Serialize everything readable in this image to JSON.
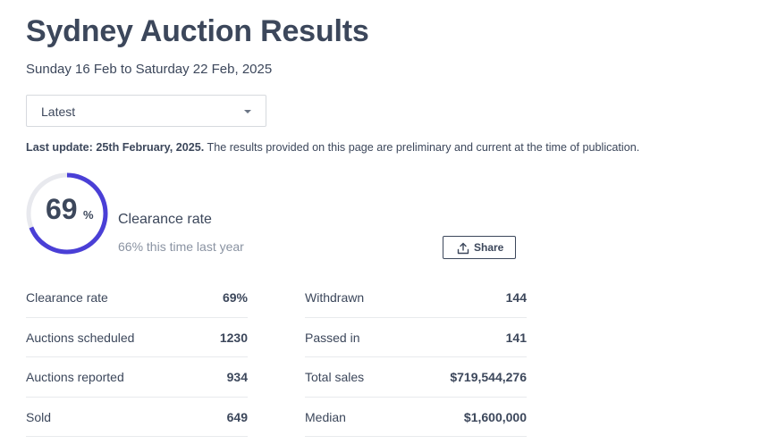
{
  "header": {
    "title": "Sydney Auction Results",
    "date_range": "Sunday 16 Feb to Saturday 22 Feb, 2025"
  },
  "period_select": {
    "value": "Latest"
  },
  "update": {
    "bold": "Last update: 25th February, 2025.",
    "text": " The results provided on this page are preliminary and current at the time of publication."
  },
  "clearance": {
    "rate_value": "69",
    "rate_percent_sign": "%",
    "rate_fraction": 0.69,
    "label": "Clearance rate",
    "last_year": "66% this time last year",
    "ring_color": "#4a3fd6",
    "track_color": "#e8e9ee"
  },
  "share": {
    "label": "Share",
    "icon": "share-upload-icon"
  },
  "stats_left": [
    {
      "label": "Clearance rate",
      "value": "69%"
    },
    {
      "label": "Auctions scheduled",
      "value": "1230"
    },
    {
      "label": "Auctions reported",
      "value": "934"
    },
    {
      "label": "Sold",
      "value": "649"
    }
  ],
  "stats_right": [
    {
      "label": "Withdrawn",
      "value": "144"
    },
    {
      "label": "Passed in",
      "value": "141"
    },
    {
      "label": "Total sales",
      "value": "$719,544,276"
    },
    {
      "label": "Median",
      "value": "$1,600,000"
    }
  ]
}
